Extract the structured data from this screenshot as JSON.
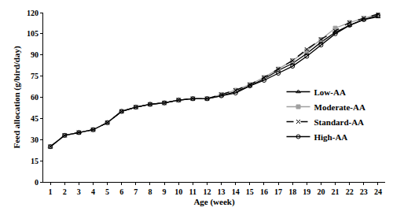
{
  "chart_data": {
    "type": "line",
    "xlabel": "Age (week)",
    "ylabel": "Feed allocation (g/bird/day)",
    "x": [
      1,
      2,
      3,
      4,
      5,
      6,
      7,
      8,
      9,
      10,
      11,
      12,
      13,
      14,
      15,
      16,
      17,
      18,
      19,
      20,
      21,
      22,
      23,
      24
    ],
    "xlim": [
      0.5,
      24.5
    ],
    "xticks": [
      1,
      2,
      3,
      4,
      5,
      6,
      7,
      8,
      9,
      10,
      11,
      12,
      13,
      14,
      15,
      16,
      17,
      18,
      19,
      20,
      21,
      22,
      23,
      24
    ],
    "ylim": [
      0,
      120
    ],
    "yticks": [
      0,
      15,
      30,
      45,
      60,
      75,
      90,
      105,
      120
    ],
    "grid": false,
    "legend": "right",
    "series": [
      {
        "name": "Low-AA",
        "color": "#000000",
        "marker": "triangle-up-open",
        "line_style": "solid",
        "values": [
          25,
          33,
          35,
          37,
          42,
          50,
          53,
          55,
          56,
          58,
          59,
          59,
          61,
          64,
          68,
          73,
          79,
          84,
          91,
          99,
          106,
          111,
          115,
          117
        ]
      },
      {
        "name": "Moderate-AA",
        "color": "#a0a0a0",
        "marker": "square",
        "line_style": "solid",
        "values": [
          25,
          33,
          35,
          37,
          42,
          50,
          53,
          55,
          56,
          58,
          59,
          59,
          62,
          65,
          69,
          74,
          80,
          86,
          93,
          101,
          109,
          113,
          116,
          119
        ]
      },
      {
        "name": "Standard-AA",
        "color": "#000000",
        "marker": "x-thin-open",
        "line_style": "dash",
        "values": [
          25,
          33,
          35,
          37,
          42,
          50,
          53,
          55,
          56,
          58,
          59,
          59,
          62,
          65,
          69,
          74,
          80,
          86,
          94,
          101,
          107,
          113,
          116,
          119
        ]
      },
      {
        "name": "High-AA",
        "color": "#000000",
        "marker": "circle-open",
        "line_style": "solid",
        "values": [
          25,
          33,
          35,
          37,
          42,
          50,
          53,
          55,
          56,
          58,
          59,
          59,
          61,
          63,
          68,
          72,
          77,
          82,
          89,
          97,
          105,
          111,
          115,
          118
        ]
      }
    ]
  }
}
